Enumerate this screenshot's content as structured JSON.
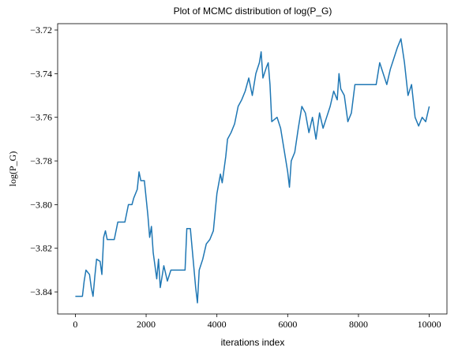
{
  "chart_data": {
    "type": "line",
    "title": "Plot of MCMC distribution of log(P_G)",
    "xlabel": "iterations index",
    "ylabel": "log(P_G)",
    "x": [
      0,
      200,
      250,
      300,
      400,
      450,
      500,
      550,
      600,
      700,
      750,
      800,
      850,
      900,
      1100,
      1200,
      1400,
      1500,
      1600,
      1650,
      1750,
      1800,
      1850,
      1950,
      2000,
      2050,
      2100,
      2150,
      2200,
      2300,
      2350,
      2400,
      2500,
      2600,
      2700,
      3000,
      3100,
      3150,
      3250,
      3300,
      3400,
      3450,
      3500,
      3600,
      3700,
      3800,
      3900,
      4000,
      4100,
      4150,
      4250,
      4300,
      4400,
      4500,
      4600,
      4700,
      4800,
      4900,
      5000,
      5100,
      5200,
      5250,
      5300,
      5400,
      5450,
      5500,
      5550,
      5700,
      5800,
      5900,
      6000,
      6050,
      6100,
      6200,
      6300,
      6400,
      6500,
      6600,
      6700,
      6800,
      6900,
      7000,
      7100,
      7200,
      7300,
      7400,
      7450,
      7500,
      7600,
      7700,
      7800,
      7900,
      8000,
      8200,
      8500,
      8600,
      8700,
      8800,
      8900,
      9000,
      9100,
      9200,
      9300,
      9400,
      9500,
      9600,
      9700,
      9800,
      9900,
      10000
    ],
    "series": [
      {
        "name": "log(P_G)",
        "color": "#1f77b4",
        "values": [
          -3.842,
          -3.842,
          -3.835,
          -3.83,
          -3.832,
          -3.838,
          -3.842,
          -3.833,
          -3.825,
          -3.826,
          -3.832,
          -3.815,
          -3.812,
          -3.816,
          -3.816,
          -3.808,
          -3.808,
          -3.8,
          -3.8,
          -3.797,
          -3.793,
          -3.785,
          -3.789,
          -3.789,
          -3.797,
          -3.805,
          -3.815,
          -3.81,
          -3.822,
          -3.834,
          -3.825,
          -3.838,
          -3.828,
          -3.835,
          -3.83,
          -3.83,
          -3.83,
          -3.811,
          -3.811,
          -3.82,
          -3.838,
          -3.845,
          -3.83,
          -3.825,
          -3.818,
          -3.816,
          -3.812,
          -3.795,
          -3.786,
          -3.79,
          -3.778,
          -3.77,
          -3.767,
          -3.763,
          -3.755,
          -3.752,
          -3.748,
          -3.742,
          -3.75,
          -3.74,
          -3.735,
          -3.73,
          -3.742,
          -3.737,
          -3.735,
          -3.745,
          -3.762,
          -3.76,
          -3.765,
          -3.775,
          -3.785,
          -3.792,
          -3.78,
          -3.776,
          -3.765,
          -3.755,
          -3.758,
          -3.767,
          -3.76,
          -3.77,
          -3.758,
          -3.765,
          -3.76,
          -3.755,
          -3.748,
          -3.752,
          -3.74,
          -3.747,
          -3.75,
          -3.762,
          -3.758,
          -3.745,
          -3.745,
          -3.745,
          -3.745,
          -3.735,
          -3.74,
          -3.745,
          -3.738,
          -3.733,
          -3.728,
          -3.724,
          -3.735,
          -3.75,
          -3.745,
          -3.76,
          -3.764,
          -3.76,
          -3.762,
          -3.755
        ]
      }
    ],
    "xlim": [
      -500,
      10500
    ],
    "xticks": [
      0,
      2000,
      4000,
      6000,
      8000,
      10000
    ],
    "ylim": [
      -3.8501,
      -3.7171
    ],
    "yticks": [
      {
        "value": -3.84,
        "label": "−3.84"
      },
      {
        "value": -3.82,
        "label": "−3.82"
      },
      {
        "value": -3.8,
        "label": "−3.80"
      },
      {
        "value": -3.78,
        "label": "−3.78"
      },
      {
        "value": -3.76,
        "label": "−3.76"
      },
      {
        "value": -3.74,
        "label": "−3.74"
      },
      {
        "value": -3.72,
        "label": "−3.72"
      }
    ],
    "grid": false
  }
}
